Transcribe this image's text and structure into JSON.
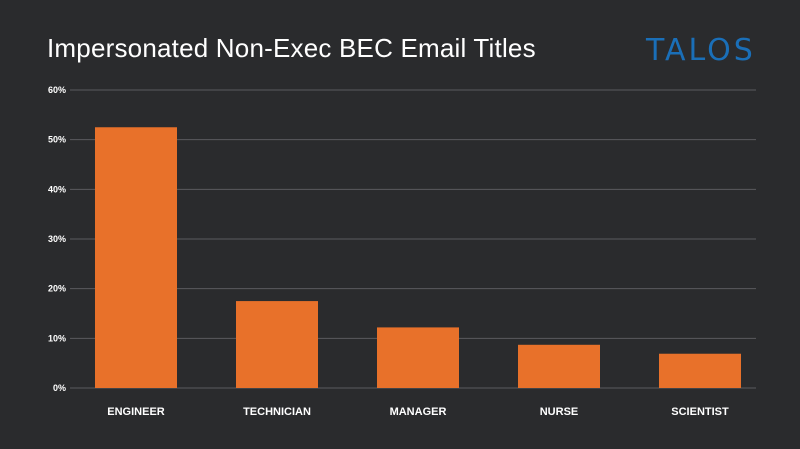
{
  "header": {
    "logo_text": "TALOS"
  },
  "colors": {
    "background": "#2a2b2d",
    "bar": "#e8712a",
    "grid": "#5a5b5e",
    "logo": "#1a6fb8",
    "text": "#ffffff"
  },
  "chart_data": {
    "type": "bar",
    "title": "Impersonated Non-Exec BEC Email Titles",
    "xlabel": "",
    "ylabel": "",
    "categories": [
      "ENGINEER",
      "TECHNICIAN",
      "MANAGER",
      "NURSE",
      "SCIENTIST"
    ],
    "values": [
      52.5,
      17.5,
      12.2,
      8.7,
      6.9
    ],
    "ylim": [
      0,
      60
    ],
    "yticks": [
      0,
      10,
      20,
      30,
      40,
      50,
      60
    ],
    "ytick_labels": [
      "0%",
      "10%",
      "20%",
      "30%",
      "40%",
      "50%",
      "60%"
    ],
    "grid": true,
    "legend": "none"
  }
}
